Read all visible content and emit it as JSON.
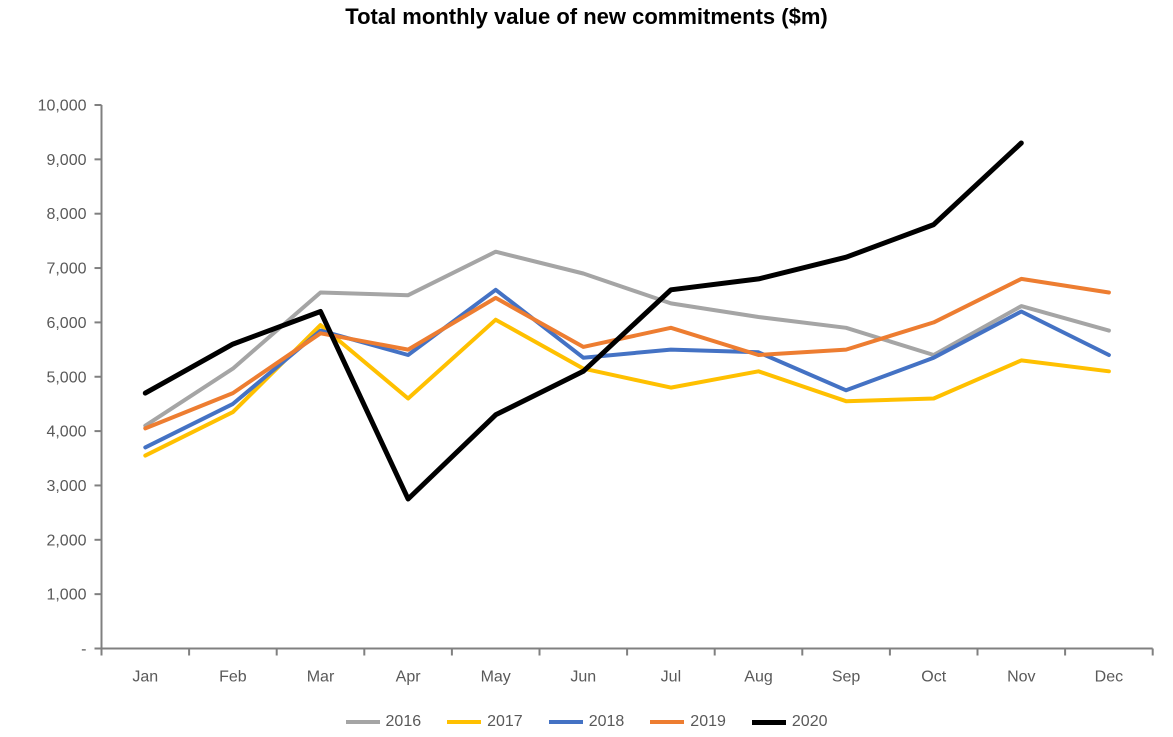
{
  "title": "Total monthly value of new commitments ($m)",
  "axis": {
    "line_color": "#808080",
    "label_color": "#595959",
    "ytick_labels_top_to_bottom": [
      "10,000",
      "9,000",
      "8,000",
      "7,000",
      "6,000",
      "5,000",
      "4,000",
      "3,000",
      "2,000",
      "1,000",
      "-"
    ]
  },
  "legend": {
    "position": "bottom",
    "entries": [
      "2016",
      "2017",
      "2018",
      "2019",
      "2020"
    ]
  },
  "chart_data": {
    "type": "line",
    "title": "Total monthly value of new commitments ($m)",
    "categories": [
      "Jan",
      "Feb",
      "Mar",
      "Apr",
      "May",
      "Jun",
      "Jul",
      "Aug",
      "Sep",
      "Oct",
      "Nov",
      "Dec"
    ],
    "series": [
      {
        "name": "2016",
        "color": "#A5A5A5",
        "stroke_width": 4,
        "values": [
          4100,
          5150,
          6550,
          6500,
          7300,
          6900,
          6350,
          6100,
          5900,
          5400,
          6300,
          5850
        ]
      },
      {
        "name": "2017",
        "color": "#FFC000",
        "stroke_width": 4,
        "values": [
          3550,
          4350,
          5950,
          4600,
          6050,
          5150,
          4800,
          5100,
          4550,
          4600,
          5300,
          5100
        ]
      },
      {
        "name": "2018",
        "color": "#4472C4",
        "stroke_width": 4,
        "values": [
          3700,
          4500,
          5850,
          5400,
          6600,
          5350,
          5500,
          5450,
          4750,
          5350,
          6200,
          5400
        ]
      },
      {
        "name": "2019",
        "color": "#ED7D31",
        "stroke_width": 4,
        "values": [
          4050,
          4700,
          5800,
          5500,
          6450,
          5550,
          5900,
          5400,
          5500,
          6000,
          6800,
          6550
        ]
      },
      {
        "name": "2020",
        "color": "#000000",
        "stroke_width": 5,
        "values": [
          4700,
          5600,
          6200,
          2750,
          4300,
          5100,
          6600,
          6800,
          7200,
          7800,
          9300,
          null
        ]
      }
    ],
    "ylim": [
      0,
      10000
    ],
    "ytick_interval": 1000,
    "xlabel": "",
    "ylabel": "",
    "grid": false,
    "legend_position": "bottom"
  }
}
